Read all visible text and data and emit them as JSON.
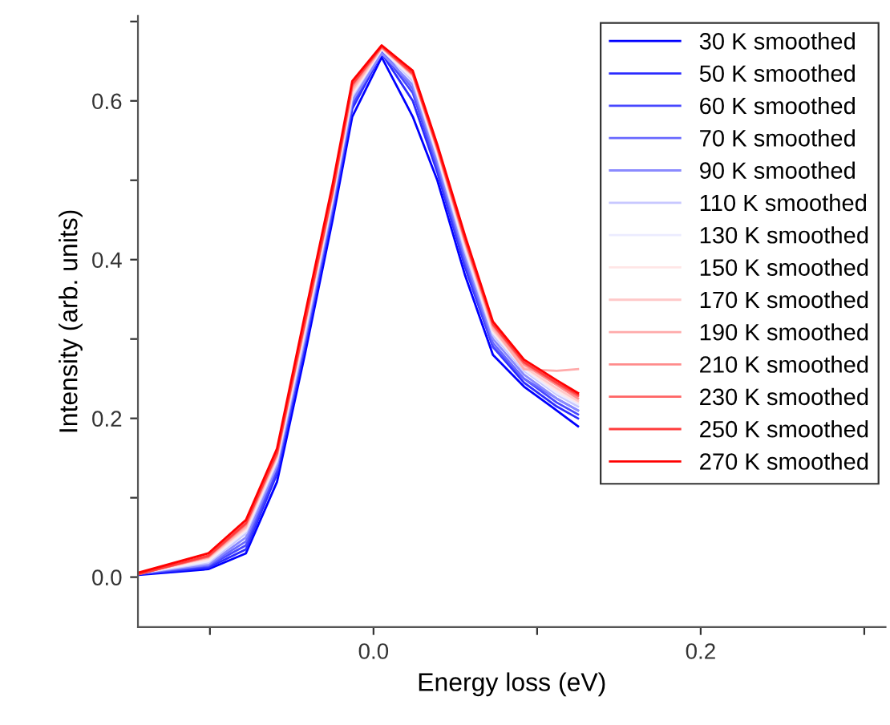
{
  "chart_data": {
    "type": "line",
    "xlabel": "Energy loss (eV)",
    "ylabel": "Intensity (arb. units)",
    "x": [
      -0.143,
      -0.101,
      -0.078,
      -0.059,
      -0.042,
      -0.025,
      -0.013,
      0.005,
      0.024,
      0.039,
      0.056,
      0.073,
      0.092,
      0.112,
      0.125
    ],
    "series": [
      {
        "name": "30 K smoothed",
        "color": "#0000ff",
        "values": [
          0.003,
          0.01,
          0.03,
          0.12,
          0.28,
          0.45,
          0.58,
          0.655,
          0.58,
          0.5,
          0.38,
          0.28,
          0.24,
          0.21,
          0.19
        ]
      },
      {
        "name": "50 K smoothed",
        "color": "#2b2bff",
        "values": [
          0.004,
          0.012,
          0.035,
          0.13,
          0.29,
          0.46,
          0.59,
          0.66,
          0.6,
          0.51,
          0.39,
          0.29,
          0.245,
          0.215,
          0.2
        ]
      },
      {
        "name": "60 K smoothed",
        "color": "#4747ff",
        "values": [
          0.004,
          0.014,
          0.04,
          0.135,
          0.295,
          0.465,
          0.595,
          0.662,
          0.61,
          0.515,
          0.395,
          0.29,
          0.25,
          0.22,
          0.205
        ]
      },
      {
        "name": "70 K smoothed",
        "color": "#6868ff",
        "values": [
          0.005,
          0.015,
          0.045,
          0.14,
          0.3,
          0.47,
          0.6,
          0.665,
          0.615,
          0.52,
          0.4,
          0.295,
          0.25,
          0.225,
          0.21
        ]
      },
      {
        "name": "90 K smoothed",
        "color": "#8a8aff",
        "values": [
          0.005,
          0.016,
          0.05,
          0.14,
          0.3,
          0.47,
          0.6,
          0.66,
          0.62,
          0.525,
          0.405,
          0.3,
          0.255,
          0.225,
          0.21
        ]
      },
      {
        "name": "110 K smoothed",
        "color": "#c8c8ff",
        "values": [
          0.005,
          0.018,
          0.055,
          0.145,
          0.305,
          0.475,
          0.605,
          0.665,
          0.625,
          0.53,
          0.41,
          0.305,
          0.26,
          0.23,
          0.215
        ]
      },
      {
        "name": "130 K smoothed",
        "color": "#ececff",
        "values": [
          0.005,
          0.02,
          0.058,
          0.148,
          0.31,
          0.478,
          0.608,
          0.665,
          0.628,
          0.532,
          0.414,
          0.308,
          0.262,
          0.232,
          0.218
        ]
      },
      {
        "name": "150 K smoothed",
        "color": "#ffe6e6",
        "values": [
          0.005,
          0.022,
          0.06,
          0.15,
          0.312,
          0.48,
          0.61,
          0.666,
          0.63,
          0.535,
          0.418,
          0.31,
          0.264,
          0.235,
          0.22
        ]
      },
      {
        "name": "170 K smoothed",
        "color": "#ffc8c8",
        "values": [
          0.005,
          0.024,
          0.062,
          0.152,
          0.315,
          0.482,
          0.612,
          0.667,
          0.632,
          0.538,
          0.42,
          0.312,
          0.265,
          0.238,
          0.222
        ]
      },
      {
        "name": "190 K smoothed",
        "color": "#ffaaaa",
        "values": [
          0.005,
          0.025,
          0.064,
          0.153,
          0.318,
          0.483,
          0.615,
          0.667,
          0.634,
          0.54,
          0.422,
          0.315,
          0.262,
          0.26,
          0.262
        ]
      },
      {
        "name": "210 K smoothed",
        "color": "#ff8c8c",
        "values": [
          0.004,
          0.026,
          0.066,
          0.155,
          0.32,
          0.485,
          0.618,
          0.668,
          0.633,
          0.54,
          0.424,
          0.317,
          0.268,
          0.242,
          0.225
        ]
      },
      {
        "name": "230 K smoothed",
        "color": "#ff6464",
        "values": [
          0.004,
          0.026,
          0.067,
          0.156,
          0.321,
          0.486,
          0.62,
          0.668,
          0.634,
          0.541,
          0.425,
          0.318,
          0.27,
          0.244,
          0.228
        ]
      },
      {
        "name": "250 K smoothed",
        "color": "#ff3c3c",
        "values": [
          0.004,
          0.027,
          0.068,
          0.157,
          0.322,
          0.487,
          0.621,
          0.669,
          0.635,
          0.542,
          0.426,
          0.319,
          0.271,
          0.245,
          0.23
        ]
      },
      {
        "name": "270 K smoothed",
        "color": "#ff0000",
        "values": [
          0.006,
          0.03,
          0.072,
          0.162,
          0.33,
          0.495,
          0.625,
          0.67,
          0.638,
          0.545,
          0.43,
          0.322,
          0.274,
          0.248,
          0.232
        ]
      }
    ],
    "xlim": [
      -0.144,
      0.313
    ],
    "xticks": [
      {
        "value": -0.1,
        "label": null
      },
      {
        "value": 0.0,
        "label": "0.0"
      },
      {
        "value": 0.1,
        "label": null
      },
      {
        "value": 0.2,
        "label": "0.2"
      },
      {
        "value": 0.3,
        "label": null
      }
    ],
    "ylim": [
      -0.063,
      0.707
    ],
    "yticks": [
      {
        "value": 0.0,
        "label": "0.0"
      },
      {
        "value": 0.1,
        "label": null
      },
      {
        "value": 0.2,
        "label": "0.2"
      },
      {
        "value": 0.3,
        "label": null
      },
      {
        "value": 0.4,
        "label": "0.4"
      },
      {
        "value": 0.5,
        "label": null
      },
      {
        "value": 0.6,
        "label": "0.6"
      },
      {
        "value": 0.7,
        "label": null
      }
    ],
    "legend": "top right",
    "grid": false,
    "marker": "none",
    "line_style": "solid"
  }
}
